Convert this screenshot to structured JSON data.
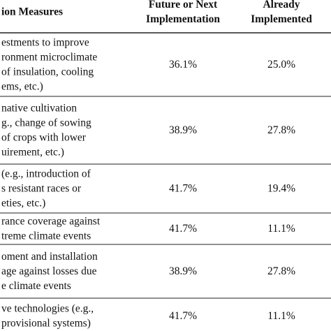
{
  "table": {
    "header": [
      "ion Measures",
      [
        "Future or Next",
        "Implementation"
      ],
      [
        "Already",
        "Implemented"
      ]
    ],
    "rows": [
      [
        [
          "estments to improve",
          "ronment microclimate",
          "of insulation, cooling",
          "ems, etc.)"
        ],
        "36.1%",
        "25.0%"
      ],
      [
        [
          "native cultivation",
          "g., change of sowing",
          "of crops with lower",
          "uirement, etc.)"
        ],
        "38.9%",
        "27.8%"
      ],
      [
        [
          "(e.g., introduction of",
          "s resistant races or",
          "eties, etc.)"
        ],
        "41.7%",
        "19.4%"
      ],
      [
        [
          "rance coverage against",
          "treme climate events"
        ],
        "41.7%",
        "11.1%"
      ],
      [
        [
          "oment and installation",
          "age against losses due",
          "e climate events"
        ],
        "38.9%",
        "27.8%"
      ],
      [
        [
          "ve technologies (e.g.,",
          "provisional systems)"
        ],
        "41.7%",
        "11.1%"
      ]
    ]
  }
}
